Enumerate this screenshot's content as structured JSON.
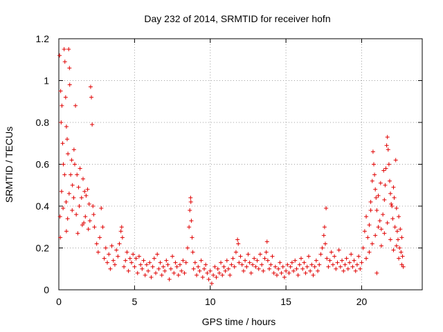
{
  "chart_data": {
    "type": "scatter",
    "title": "Day 232 of 2014, SRMTID for receiver hofn",
    "xlabel": "GPS time / hours",
    "ylabel": "SRMTID / TECUs",
    "xlim": [
      0,
      24
    ],
    "ylim": [
      0,
      1.2
    ],
    "xticks": [
      0,
      5,
      10,
      15,
      20
    ],
    "yticks": [
      0,
      0.2,
      0.4,
      0.6,
      0.8,
      1,
      1.2
    ],
    "xtick_labels": [
      "0",
      "5",
      "10",
      "15",
      "20"
    ],
    "ytick_labels": [
      "0",
      "0.2",
      "0.4",
      "0.6",
      "0.8",
      "1",
      "1.2"
    ],
    "grid": true,
    "marker": "+",
    "color": "#e00000",
    "series": [
      {
        "name": "SRMTID",
        "points": [
          [
            0.05,
            1.12
          ],
          [
            0.12,
            0.95
          ],
          [
            0.15,
            0.8
          ],
          [
            0.2,
            0.88
          ],
          [
            0.25,
            0.7
          ],
          [
            0.3,
            0.6
          ],
          [
            0.35,
            1.15
          ],
          [
            0.4,
            1.09
          ],
          [
            0.45,
            0.92
          ],
          [
            0.5,
            0.78
          ],
          [
            0.55,
            0.72
          ],
          [
            0.6,
            0.65
          ],
          [
            0.65,
            1.15
          ],
          [
            0.7,
            1.06
          ],
          [
            0.72,
            0.98
          ],
          [
            0.78,
            0.55
          ],
          [
            0.85,
            0.62
          ],
          [
            0.9,
            0.5
          ],
          [
            1.0,
            0.67
          ],
          [
            1.05,
            0.6
          ],
          [
            1.1,
            0.88
          ],
          [
            1.2,
            0.55
          ],
          [
            1.3,
            0.49
          ],
          [
            1.4,
            0.58
          ],
          [
            1.5,
            0.44
          ],
          [
            1.6,
            0.53
          ],
          [
            1.7,
            0.47
          ],
          [
            1.8,
            0.45
          ],
          [
            1.9,
            0.48
          ],
          [
            2.0,
            0.41
          ],
          [
            2.1,
            0.97
          ],
          [
            2.15,
            0.92
          ],
          [
            2.2,
            0.79
          ],
          [
            2.25,
            0.4
          ],
          [
            2.3,
            0.36
          ],
          [
            2.35,
            0.3
          ],
          [
            0.08,
            0.35
          ],
          [
            0.18,
            0.47
          ],
          [
            0.28,
            0.39
          ],
          [
            0.38,
            0.55
          ],
          [
            0.48,
            0.42
          ],
          [
            0.58,
            0.34
          ],
          [
            0.68,
            0.46
          ],
          [
            0.88,
            0.38
          ],
          [
            0.98,
            0.44
          ],
          [
            1.15,
            0.36
          ],
          [
            1.35,
            0.4
          ],
          [
            1.55,
            0.31
          ],
          [
            1.75,
            0.35
          ],
          [
            1.95,
            0.29
          ],
          [
            0.1,
            0.25
          ],
          [
            0.5,
            0.28
          ],
          [
            1.25,
            0.27
          ],
          [
            1.65,
            0.32
          ],
          [
            2.05,
            0.33
          ],
          [
            2.5,
            0.22
          ],
          [
            2.6,
            0.18
          ],
          [
            2.7,
            0.25
          ],
          [
            2.8,
            0.39
          ],
          [
            2.9,
            0.3
          ],
          [
            3.0,
            0.15
          ],
          [
            3.1,
            0.2
          ],
          [
            3.2,
            0.13
          ],
          [
            3.3,
            0.17
          ],
          [
            3.4,
            0.1
          ],
          [
            3.5,
            0.21
          ],
          [
            3.6,
            0.14
          ],
          [
            3.7,
            0.12
          ],
          [
            3.8,
            0.19
          ],
          [
            3.9,
            0.16
          ],
          [
            4.0,
            0.22
          ],
          [
            4.1,
            0.28
          ],
          [
            4.15,
            0.3
          ],
          [
            4.2,
            0.25
          ],
          [
            4.3,
            0.11
          ],
          [
            4.4,
            0.14
          ],
          [
            4.5,
            0.18
          ],
          [
            4.6,
            0.09
          ],
          [
            4.7,
            0.15
          ],
          [
            4.8,
            0.13
          ],
          [
            4.9,
            0.17
          ],
          [
            5.0,
            0.11
          ],
          [
            5.1,
            0.15
          ],
          [
            5.2,
            0.08
          ],
          [
            5.3,
            0.16
          ],
          [
            5.4,
            0.12
          ],
          [
            5.5,
            0.1
          ],
          [
            5.6,
            0.14
          ],
          [
            5.7,
            0.07
          ],
          [
            5.8,
            0.12
          ],
          [
            5.9,
            0.09
          ],
          [
            6.0,
            0.13
          ],
          [
            6.1,
            0.06
          ],
          [
            6.2,
            0.11
          ],
          [
            6.3,
            0.15
          ],
          [
            6.4,
            0.08
          ],
          [
            6.5,
            0.17
          ],
          [
            6.6,
            0.1
          ],
          [
            6.7,
            0.13
          ],
          [
            6.8,
            0.07
          ],
          [
            6.9,
            0.11
          ],
          [
            7.0,
            0.09
          ],
          [
            7.1,
            0.14
          ],
          [
            7.2,
            0.12
          ],
          [
            7.3,
            0.05
          ],
          [
            7.4,
            0.1
          ],
          [
            7.5,
            0.16
          ],
          [
            7.6,
            0.08
          ],
          [
            7.7,
            0.13
          ],
          [
            7.8,
            0.11
          ],
          [
            7.9,
            0.07
          ],
          [
            8.0,
            0.12
          ],
          [
            8.1,
            0.09
          ],
          [
            8.2,
            0.14
          ],
          [
            8.3,
            0.08
          ],
          [
            8.4,
            0.13
          ],
          [
            8.5,
            0.2
          ],
          [
            8.6,
            0.3
          ],
          [
            8.65,
            0.38
          ],
          [
            8.7,
            0.44
          ],
          [
            8.72,
            0.42
          ],
          [
            8.75,
            0.33
          ],
          [
            8.8,
            0.25
          ],
          [
            8.85,
            0.18
          ],
          [
            8.9,
            0.1
          ],
          [
            9.0,
            0.13
          ],
          [
            9.1,
            0.07
          ],
          [
            9.2,
            0.11
          ],
          [
            9.3,
            0.09
          ],
          [
            9.4,
            0.14
          ],
          [
            9.5,
            0.06
          ],
          [
            9.6,
            0.1
          ],
          [
            9.7,
            0.12
          ],
          [
            9.8,
            0.08
          ],
          [
            9.9,
            0.05
          ],
          [
            10.0,
            0.09
          ],
          [
            10.1,
            0.03
          ],
          [
            10.2,
            0.07
          ],
          [
            10.3,
            0.11
          ],
          [
            10.4,
            0.06
          ],
          [
            10.5,
            0.1
          ],
          [
            10.6,
            0.08
          ],
          [
            10.7,
            0.13
          ],
          [
            10.8,
            0.07
          ],
          [
            10.9,
            0.11
          ],
          [
            11.0,
            0.09
          ],
          [
            11.1,
            0.14
          ],
          [
            11.2,
            0.1
          ],
          [
            11.3,
            0.07
          ],
          [
            11.4,
            0.12
          ],
          [
            11.5,
            0.15
          ],
          [
            11.6,
            0.11
          ],
          [
            11.7,
            0.18
          ],
          [
            11.8,
            0.24
          ],
          [
            11.85,
            0.22
          ],
          [
            11.9,
            0.13
          ],
          [
            12.0,
            0.16
          ],
          [
            12.1,
            0.12
          ],
          [
            12.2,
            0.09
          ],
          [
            12.3,
            0.14
          ],
          [
            12.4,
            0.11
          ],
          [
            12.5,
            0.17
          ],
          [
            12.6,
            0.13
          ],
          [
            12.7,
            0.08
          ],
          [
            12.8,
            0.12
          ],
          [
            12.9,
            0.15
          ],
          [
            13.0,
            0.11
          ],
          [
            13.1,
            0.14
          ],
          [
            13.2,
            0.1
          ],
          [
            13.3,
            0.17
          ],
          [
            13.4,
            0.12
          ],
          [
            13.5,
            0.09
          ],
          [
            13.6,
            0.15
          ],
          [
            13.7,
            0.18
          ],
          [
            13.75,
            0.23
          ],
          [
            13.8,
            0.14
          ],
          [
            13.9,
            0.1
          ],
          [
            14.0,
            0.12
          ],
          [
            14.1,
            0.16
          ],
          [
            14.2,
            0.08
          ],
          [
            14.3,
            0.11
          ],
          [
            14.4,
            0.07
          ],
          [
            14.5,
            0.1
          ],
          [
            14.6,
            0.13
          ],
          [
            14.7,
            0.08
          ],
          [
            14.8,
            0.11
          ],
          [
            14.9,
            0.06
          ],
          [
            15.0,
            0.09
          ],
          [
            15.1,
            0.12
          ],
          [
            15.2,
            0.08
          ],
          [
            15.3,
            0.11
          ],
          [
            15.4,
            0.13
          ],
          [
            15.5,
            0.09
          ],
          [
            15.6,
            0.14
          ],
          [
            15.7,
            0.1
          ],
          [
            15.8,
            0.07
          ],
          [
            15.9,
            0.12
          ],
          [
            16.0,
            0.15
          ],
          [
            16.1,
            0.1
          ],
          [
            16.2,
            0.13
          ],
          [
            16.3,
            0.08
          ],
          [
            16.4,
            0.11
          ],
          [
            16.5,
            0.16
          ],
          [
            16.6,
            0.09
          ],
          [
            16.7,
            0.12
          ],
          [
            16.8,
            0.07
          ],
          [
            16.9,
            0.11
          ],
          [
            17.0,
            0.14
          ],
          [
            17.1,
            0.09
          ],
          [
            17.2,
            0.12
          ],
          [
            17.3,
            0.17
          ],
          [
            17.4,
            0.2
          ],
          [
            17.5,
            0.26
          ],
          [
            17.55,
            0.3
          ],
          [
            17.6,
            0.22
          ],
          [
            17.65,
            0.39
          ],
          [
            17.7,
            0.15
          ],
          [
            17.8,
            0.11
          ],
          [
            17.9,
            0.14
          ],
          [
            18.0,
            0.18
          ],
          [
            18.1,
            0.12
          ],
          [
            18.2,
            0.16
          ],
          [
            18.3,
            0.1
          ],
          [
            18.4,
            0.13
          ],
          [
            18.5,
            0.19
          ],
          [
            18.6,
            0.11
          ],
          [
            18.7,
            0.14
          ],
          [
            18.8,
            0.09
          ],
          [
            18.9,
            0.12
          ],
          [
            19.0,
            0.15
          ],
          [
            19.1,
            0.1
          ],
          [
            19.2,
            0.13
          ],
          [
            19.3,
            0.17
          ],
          [
            19.4,
            0.11
          ],
          [
            19.5,
            0.14
          ],
          [
            19.6,
            0.09
          ],
          [
            19.7,
            0.12
          ],
          [
            19.8,
            0.16
          ],
          [
            19.9,
            0.1
          ],
          [
            20.0,
            0.13
          ],
          [
            20.1,
            0.2
          ],
          [
            20.2,
            0.28
          ],
          [
            20.3,
            0.35
          ],
          [
            20.4,
            0.25
          ],
          [
            20.5,
            0.31
          ],
          [
            20.6,
            0.42
          ],
          [
            20.7,
            0.52
          ],
          [
            20.75,
            0.66
          ],
          [
            20.8,
            0.6
          ],
          [
            20.85,
            0.55
          ],
          [
            20.9,
            0.48
          ],
          [
            21.0,
            0.38
          ],
          [
            21.1,
            0.45
          ],
          [
            21.2,
            0.33
          ],
          [
            21.3,
            0.29
          ],
          [
            21.4,
            0.36
          ],
          [
            21.5,
            0.43
          ],
          [
            21.6,
            0.58
          ],
          [
            21.65,
            0.69
          ],
          [
            21.7,
            0.73
          ],
          [
            21.75,
            0.67
          ],
          [
            21.8,
            0.6
          ],
          [
            21.85,
            0.52
          ],
          [
            21.9,
            0.46
          ],
          [
            22.0,
            0.4
          ],
          [
            22.05,
            0.34
          ],
          [
            22.1,
            0.49
          ],
          [
            22.15,
            0.44
          ],
          [
            22.2,
            0.3
          ],
          [
            22.25,
            0.62
          ],
          [
            22.3,
            0.39
          ],
          [
            22.35,
            0.28
          ],
          [
            22.4,
            0.24
          ],
          [
            22.45,
            0.35
          ],
          [
            22.5,
            0.2
          ],
          [
            22.55,
            0.29
          ],
          [
            22.6,
            0.18
          ],
          [
            22.65,
            0.25
          ],
          [
            22.7,
            0.16
          ],
          [
            22.75,
            0.11
          ],
          [
            20.5,
            0.18
          ],
          [
            20.7,
            0.22
          ],
          [
            20.9,
            0.26
          ],
          [
            21.1,
            0.3
          ],
          [
            21.3,
            0.21
          ],
          [
            21.5,
            0.27
          ],
          [
            21.7,
            0.32
          ],
          [
            21.9,
            0.24
          ],
          [
            22.1,
            0.19
          ],
          [
            22.3,
            0.21
          ],
          [
            21.0,
            0.08
          ],
          [
            20.3,
            0.15
          ],
          [
            20.6,
            0.38
          ],
          [
            21.25,
            0.51
          ],
          [
            21.45,
            0.57
          ],
          [
            21.95,
            0.41
          ],
          [
            22.45,
            0.15
          ],
          [
            22.65,
            0.12
          ],
          [
            20.95,
            0.44
          ],
          [
            21.55,
            0.5
          ]
        ]
      }
    ]
  }
}
